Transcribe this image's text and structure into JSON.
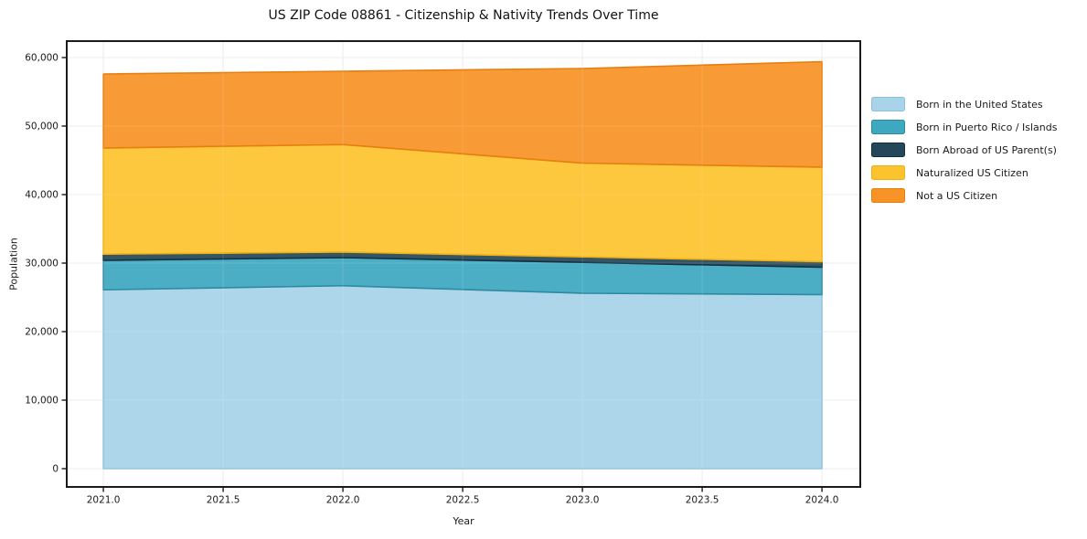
{
  "chart_data": {
    "type": "area",
    "stacked": true,
    "title": "US ZIP Code 08861 - Citizenship & Nativity Trends Over Time",
    "xlabel": "Year",
    "ylabel": "Population",
    "x": [
      2021,
      2022,
      2023,
      2024
    ],
    "series": [
      {
        "name": "Born in the United States",
        "color": "#a8d3e8",
        "edge": "#8bc1db",
        "values": [
          26100,
          26700,
          25600,
          25400
        ]
      },
      {
        "name": "Born in Puerto Rico / Islands",
        "color": "#3ea8c0",
        "edge": "#2d8ba1",
        "values": [
          4300,
          4100,
          4500,
          4000
        ]
      },
      {
        "name": "Born Abroad of US Parent(s)",
        "color": "#24485a",
        "edge": "#14303f",
        "values": [
          900,
          800,
          800,
          800
        ]
      },
      {
        "name": "Naturalized US Citizen",
        "color": "#fdc32f",
        "edge": "#eeaf12",
        "values": [
          15500,
          15700,
          13700,
          13800
        ]
      },
      {
        "name": "Not a US Citizen",
        "color": "#f79327",
        "edge": "#e67f0e",
        "values": [
          10800,
          10700,
          13800,
          15400
        ]
      }
    ],
    "stack_totals": [
      57600,
      58000,
      58400,
      59400
    ],
    "x_ticks": [
      2021.0,
      2021.5,
      2022.0,
      2022.5,
      2023.0,
      2023.5,
      2024.0
    ],
    "x_tick_labels": [
      "2021.0",
      "2021.5",
      "2022.0",
      "2022.5",
      "2023.0",
      "2023.5",
      "2024.0"
    ],
    "y_ticks": [
      0,
      10000,
      20000,
      30000,
      40000,
      50000,
      60000
    ],
    "y_tick_labels": [
      "0",
      "10,000",
      "20,000",
      "30,000",
      "40,000",
      "50,000",
      "60,000"
    ],
    "xlim": [
      2020.847,
      2024.16
    ],
    "ylim": [
      -2667,
      62400
    ],
    "grid": true,
    "grid_color": "#e9e9e9",
    "spine_color": "#1a1a1a",
    "legend_position": "right-outside",
    "legend_frame": false
  }
}
